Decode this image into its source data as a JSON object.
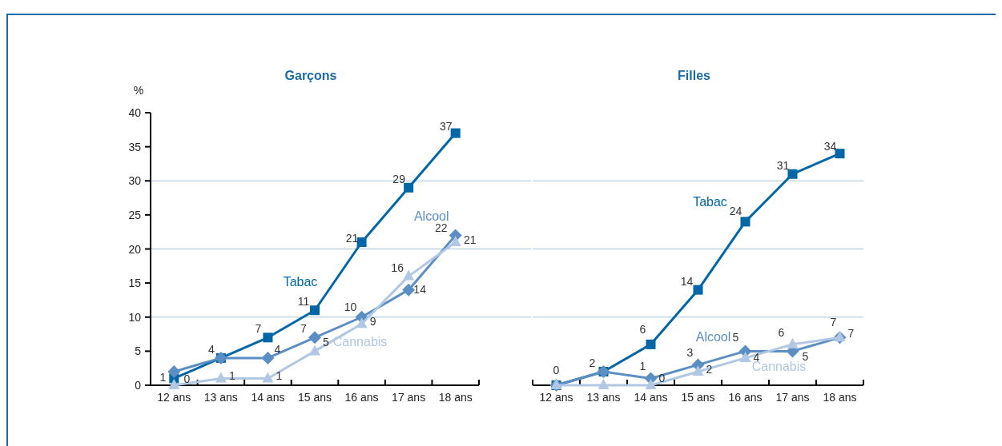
{
  "chart_data": [
    {
      "type": "line",
      "title": "Garçons",
      "ylabel": "%",
      "categories": [
        "12 ans",
        "13 ans",
        "14 ans",
        "15 ans",
        "16 ans",
        "17 ans",
        "18 ans"
      ],
      "ylim": [
        0,
        40
      ],
      "yticks": [
        0,
        5,
        10,
        15,
        20,
        25,
        30,
        35,
        40
      ],
      "ref_lines": [
        {
          "axis": "y",
          "value": 10,
          "color": "#a9c3df"
        },
        {
          "axis": "y",
          "value": 20,
          "color": "#a9c3df"
        },
        {
          "axis": "y",
          "value": 30,
          "color": "#a9c3df"
        }
      ],
      "series": [
        {
          "name": "Tabac",
          "color": "#0066a6",
          "marker": "square",
          "values": [
            1,
            4,
            7,
            11,
            21,
            29,
            37
          ],
          "value_labels": [
            "1",
            "4",
            "7",
            "11",
            "21",
            "29",
            "37"
          ]
        },
        {
          "name": "Alcool",
          "color": "#5b8fc4",
          "marker": "diamond",
          "values": [
            2,
            4,
            4,
            7,
            10,
            14,
            22
          ],
          "value_labels": [
            null,
            null,
            "4",
            "7",
            "10",
            "14",
            "22"
          ]
        },
        {
          "name": "Cannabis",
          "color": "#b0c8e4",
          "marker": "triangle",
          "values": [
            0,
            1,
            1,
            5,
            9,
            16,
            21
          ],
          "value_labels": [
            "0",
            "1",
            "1",
            "5",
            "9",
            "16",
            "21"
          ]
        }
      ]
    },
    {
      "type": "line",
      "title": "Filles",
      "categories": [
        "12 ans",
        "13 ans",
        "14 ans",
        "15 ans",
        "16 ans",
        "17 ans",
        "18 ans"
      ],
      "ylim": [
        0,
        40
      ],
      "tick_labels": "x",
      "ref_lines": [
        {
          "axis": "y",
          "value": 10,
          "color": "#a9c3df"
        },
        {
          "axis": "y",
          "value": 20,
          "color": "#a9c3df"
        },
        {
          "axis": "y",
          "value": 30,
          "color": "#a9c3df"
        }
      ],
      "series": [
        {
          "name": "Tabac",
          "color": "#0066a6",
          "marker": "square",
          "values": [
            0,
            2,
            6,
            14,
            24,
            31,
            34
          ],
          "value_labels": [
            "0",
            "2",
            "6",
            "14",
            "24",
            "31",
            "34"
          ]
        },
        {
          "name": "Alcool",
          "color": "#5b8fc4",
          "marker": "diamond",
          "values": [
            0,
            2,
            1,
            3,
            5,
            5,
            7
          ],
          "value_labels": [
            null,
            null,
            "1",
            "3",
            "5",
            "5",
            "7"
          ]
        },
        {
          "name": "Cannabis",
          "color": "#b0c8e4",
          "marker": "triangle",
          "values": [
            0,
            0,
            0,
            2,
            4,
            6,
            7
          ],
          "value_labels": [
            null,
            null,
            "0",
            "2",
            "4",
            "6",
            "7"
          ]
        }
      ]
    }
  ]
}
